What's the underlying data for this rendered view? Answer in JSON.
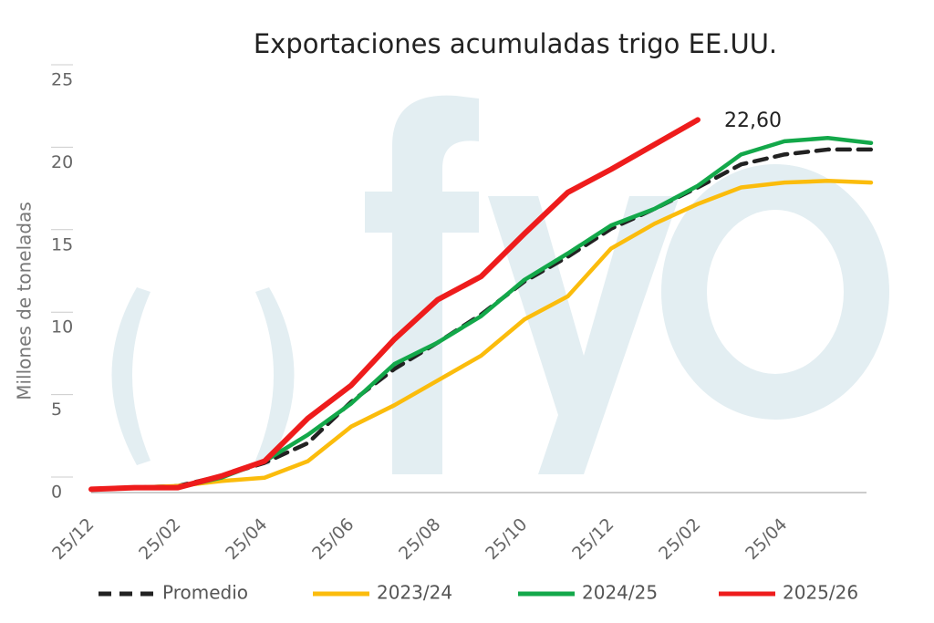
{
  "chart_data": {
    "type": "line",
    "title": "Exportaciones acumuladas trigo EE.UU.",
    "y_label": "Millones de toneladas",
    "annotation": "22,60",
    "categories": [
      "25/12",
      null,
      "25/02",
      null,
      "25/04",
      null,
      "25/06",
      null,
      "25/08",
      null,
      "25/10",
      null,
      "25/12",
      null,
      "25/02",
      null,
      "25/04",
      null,
      null
    ],
    "ylim": [
      0,
      25
    ],
    "yticks": [
      0,
      5,
      10,
      15,
      20,
      25
    ],
    "series": [
      {
        "name": "Promedio",
        "color": "#222222",
        "dashed": true,
        "values": [
          0.2,
          0.3,
          0.4,
          1.0,
          1.8,
          3.0,
          5.5,
          7.5,
          9.1,
          10.8,
          12.8,
          14.3,
          16.0,
          17.2,
          18.5,
          19.9,
          20.5,
          20.8,
          20.8
        ]
      },
      {
        "name": "2023/24",
        "color": "#fbbc0c",
        "values": [
          0.2,
          0.3,
          0.4,
          0.7,
          0.9,
          1.9,
          4.0,
          5.3,
          6.8,
          8.3,
          10.5,
          11.9,
          14.8,
          16.3,
          17.5,
          18.5,
          18.8,
          18.9,
          18.8
        ]
      },
      {
        "name": "2024/25",
        "color": "#13a84a",
        "values": [
          0.2,
          0.3,
          0.3,
          0.9,
          1.9,
          3.5,
          5.4,
          7.8,
          9.1,
          10.7,
          12.9,
          14.5,
          16.2,
          17.2,
          18.6,
          20.5,
          21.3,
          21.5,
          21.2
        ]
      },
      {
        "name": "2025/26",
        "color": "#ee1c1c",
        "values": [
          0.2,
          0.3,
          0.3,
          1.0,
          1.9,
          4.5,
          6.5,
          9.3,
          11.7,
          13.1,
          15.7,
          18.2,
          19.6,
          21.1,
          22.6,
          null,
          null,
          null,
          null
        ]
      }
    ]
  }
}
